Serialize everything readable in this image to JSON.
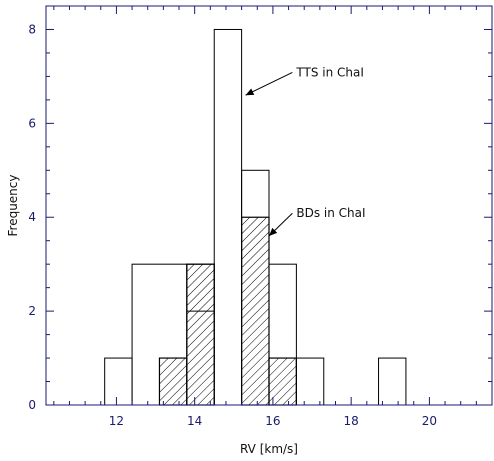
{
  "chart_data": {
    "type": "histogram",
    "xlabel": "RV [km/s]",
    "ylabel": "Frequency",
    "xlim": [
      10.2,
      21.6
    ],
    "ylim": [
      0,
      8.5
    ],
    "x_ticks": [
      12,
      14,
      16,
      18,
      20
    ],
    "y_ticks": [
      0,
      2,
      4,
      6,
      8
    ],
    "x_minor_step": 0.4,
    "y_minor_step": 0.5,
    "grid": false,
    "legend": "none",
    "series": [
      {
        "name": "TTS in ChaI",
        "style": "open",
        "bins": [
          {
            "x0": 11.7,
            "x1": 12.4,
            "count": 1
          },
          {
            "x0": 12.4,
            "x1": 13.8,
            "count": 3
          },
          {
            "x0": 13.8,
            "x1": 14.5,
            "count": 3
          },
          {
            "x0": 14.5,
            "x1": 15.2,
            "count": 8
          },
          {
            "x0": 15.2,
            "x1": 15.9,
            "count": 5
          },
          {
            "x0": 15.9,
            "x1": 16.6,
            "count": 3
          },
          {
            "x0": 16.6,
            "x1": 17.3,
            "count": 1
          },
          {
            "x0": 18.7,
            "x1": 19.4,
            "count": 1
          }
        ]
      },
      {
        "name": "BDs in ChaI",
        "style": "hatched",
        "bins": [
          {
            "x0": 13.1,
            "x1": 13.8,
            "count": 1
          },
          {
            "x0": 13.8,
            "x1": 14.5,
            "count": 3,
            "inner_line": 2
          },
          {
            "x0": 15.2,
            "x1": 15.9,
            "count": 4
          },
          {
            "x0": 15.9,
            "x1": 16.6,
            "count": 1
          }
        ]
      }
    ],
    "annotations": [
      {
        "text": "TTS in ChaI",
        "x": 16.6,
        "y": 7.0,
        "arrow_to_x": 15.3,
        "arrow_to_y": 6.6
      },
      {
        "text": "BDs in ChaI",
        "x": 16.6,
        "y": 4.0,
        "arrow_to_x": 15.9,
        "arrow_to_y": 3.6
      }
    ],
    "colors": {
      "axis": "#1a1a6e",
      "bars": "#000000",
      "text": "#111111"
    }
  }
}
